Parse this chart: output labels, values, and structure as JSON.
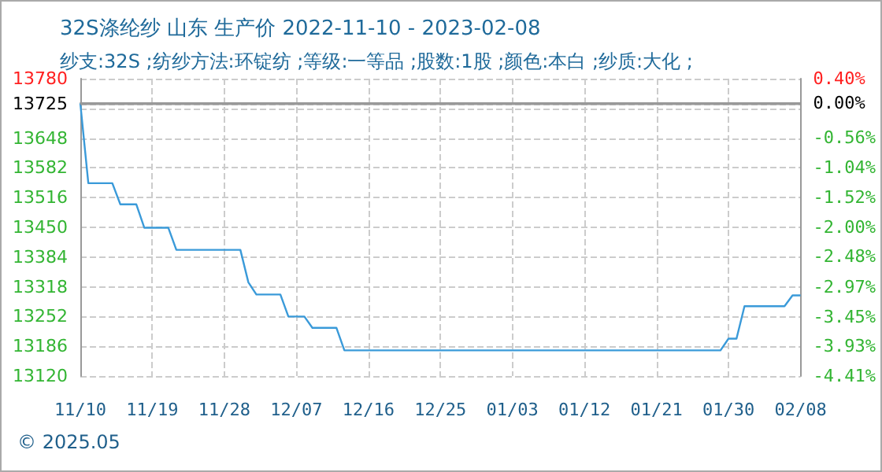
{
  "chart_data": {
    "type": "line",
    "title": "32S涤纶纱 山东 生产价 2022-11-10 - 2023-02-08",
    "subtitle": "纱支:32S ;纺纱方法:环锭纺 ;等级:一等品 ;股数:1股 ;颜色:本白 ;纱质:大化 ;",
    "x": [
      "2022-11-10",
      "2022-11-11",
      "2022-11-14",
      "2022-11-15",
      "2022-11-17",
      "2022-11-18",
      "2022-11-21",
      "2022-11-22",
      "2022-11-30",
      "2022-12-01",
      "2022-12-02",
      "2022-12-05",
      "2022-12-06",
      "2022-12-08",
      "2022-12-09",
      "2022-12-12",
      "2022-12-13",
      "2023-01-29",
      "2023-01-30",
      "2023-01-31",
      "2023-02-01",
      "2023-02-06",
      "2023-02-07",
      "2023-02-08"
    ],
    "series": [
      {
        "color": "#3a9ad9",
        "values": [
          13725,
          13548,
          13548,
          13501,
          13501,
          13449,
          13449,
          13400,
          13400,
          13328,
          13301,
          13301,
          13252,
          13252,
          13227,
          13227,
          13177,
          13177,
          13203,
          13203,
          13275,
          13275,
          13299,
          13299
        ]
      }
    ],
    "xlim": [
      "2022-11-10",
      "2023-02-08"
    ],
    "xticks": [
      {
        "value": "2022-11-10",
        "label": "11/10"
      },
      {
        "value": "2022-11-19",
        "label": "11/19"
      },
      {
        "value": "2022-11-28",
        "label": "11/28"
      },
      {
        "value": "2022-12-07",
        "label": "12/07"
      },
      {
        "value": "2022-12-16",
        "label": "12/16"
      },
      {
        "value": "2022-12-25",
        "label": "12/25"
      },
      {
        "value": "2023-01-03",
        "label": "01/03"
      },
      {
        "value": "2023-01-12",
        "label": "01/12"
      },
      {
        "value": "2023-01-21",
        "label": "01/21"
      },
      {
        "value": "2023-01-30",
        "label": "01/30"
      },
      {
        "value": "2023-02-08",
        "label": "02/08"
      }
    ],
    "ylim": [
      13120,
      13780
    ],
    "yticks": [
      13120,
      13186,
      13252,
      13318,
      13384,
      13450,
      13516,
      13582,
      13648,
      {
        "value": 13714,
        "label": null
      },
      13725,
      13780
    ],
    "y2lim": [
      -4.41,
      0.4
    ],
    "y2ticks": [
      {
        "value": -4.41,
        "label": "-4.41%"
      },
      {
        "value": -3.93,
        "label": "-3.93%"
      },
      {
        "value": -3.45,
        "label": "-3.45%"
      },
      {
        "value": -2.97,
        "label": "-2.97%"
      },
      {
        "value": -2.48,
        "label": "-2.48%"
      },
      {
        "value": -2.0,
        "label": "-2.00%"
      },
      {
        "value": -1.52,
        "label": "-1.52%"
      },
      {
        "value": -1.04,
        "label": "-1.04%"
      },
      {
        "value": -0.56,
        "label": "-0.56%"
      },
      {
        "value": -0.08,
        "label": null
      },
      {
        "value": 0.0,
        "label": "0.00%"
      },
      {
        "value": 0.4,
        "label": "0.40%"
      }
    ],
    "ref_lines": [
      {
        "axis": "y",
        "value": 13725,
        "color": "#999999",
        "line_style": "solid"
      }
    ],
    "grid": true,
    "line_style": "solid",
    "marker": "none",
    "annotations": [
      "© 2025.05"
    ]
  }
}
